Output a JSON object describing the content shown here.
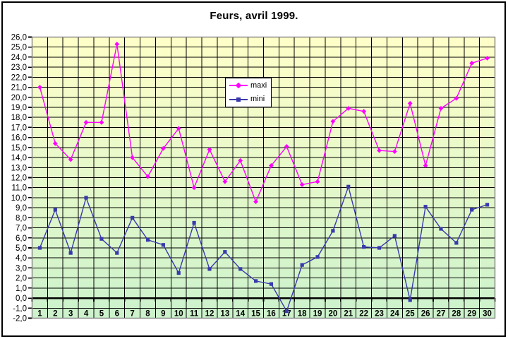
{
  "chart": {
    "title": "Feurs, avril 1999."
  },
  "legend": {
    "items": [
      {
        "label": "maxi"
      },
      {
        "label": "mini"
      }
    ]
  },
  "chart_data": {
    "type": "line",
    "title": "Feurs, avril 1999.",
    "categories": [
      1,
      2,
      3,
      4,
      5,
      6,
      7,
      8,
      9,
      10,
      11,
      12,
      13,
      14,
      15,
      16,
      17,
      18,
      19,
      20,
      21,
      22,
      23,
      24,
      25,
      26,
      27,
      28,
      29,
      30
    ],
    "series": [
      {
        "name": "maxi",
        "color": "#FF00FF",
        "marker": "diamond",
        "values": [
          21.0,
          15.4,
          13.8,
          17.5,
          17.5,
          25.3,
          14.0,
          12.1,
          14.9,
          16.9,
          11.0,
          14.8,
          11.6,
          13.7,
          9.6,
          13.2,
          15.1,
          11.3,
          11.6,
          17.6,
          18.9,
          18.6,
          14.7,
          14.6,
          19.4,
          13.2,
          18.9,
          19.9,
          23.4,
          23.9
        ]
      },
      {
        "name": "mini",
        "color": "#3939AC",
        "marker": "square",
        "values": [
          5.0,
          8.8,
          4.5,
          10.0,
          5.9,
          4.5,
          8.0,
          5.8,
          5.3,
          2.5,
          7.5,
          2.9,
          4.6,
          2.9,
          1.7,
          1.4,
          -1.3,
          3.3,
          4.1,
          6.7,
          11.1,
          5.1,
          5.0,
          6.2,
          -0.2,
          9.1,
          6.9,
          5.5,
          8.8,
          9.3
        ]
      }
    ],
    "xlabel": "",
    "ylabel": "",
    "ylim": [
      -2,
      26
    ],
    "ytick_step": 1,
    "y_tick_labels": [
      "26,0",
      "25,0",
      "24,0",
      "23,0",
      "22,0",
      "21,0",
      "20,0",
      "19,0",
      "18,0",
      "17,0",
      "16,0",
      "15,0",
      "14,0",
      "13,0",
      "12,0",
      "11,0",
      "10,0",
      "9,0",
      "8,0",
      "7,0",
      "6,0",
      "5,0",
      "4,0",
      "3,0",
      "2,0",
      "1,0",
      "0,0",
      "-1,0",
      "-2,0"
    ],
    "grid": true,
    "gridline_color": "#000000",
    "zero_axis_bold": true,
    "legend_position": "upper-middle",
    "plot_bg_gradient": [
      "#FFFFC8",
      "#CCF2CC"
    ],
    "plot_border_color": "#848284"
  }
}
